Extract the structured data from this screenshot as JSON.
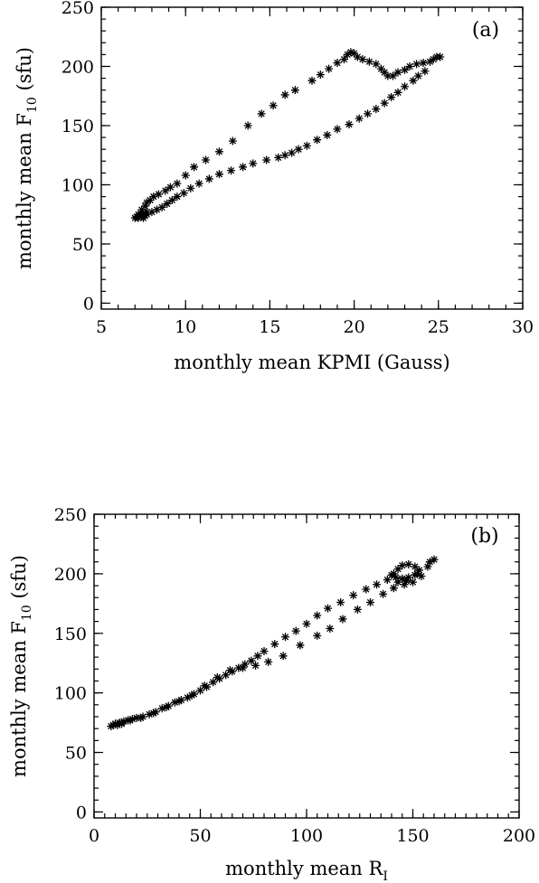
{
  "chart_data": [
    {
      "type": "scatter",
      "panel_label": "(a)",
      "xlabel": "monthly mean KPMI (Gauss)",
      "ylabel": {
        "main": "monthly mean F",
        "sub": "10",
        "unit": " (sfu)"
      },
      "xlim": [
        5,
        30
      ],
      "ylim": [
        -5,
        250
      ],
      "xticks": [
        5,
        10,
        15,
        20,
        25,
        30
      ],
      "yticks": [
        0,
        50,
        100,
        150,
        200,
        250
      ],
      "xtick_labels": [
        "5",
        "10",
        "15",
        "20",
        "25",
        "30"
      ],
      "ytick_labels": [
        "0",
        "50",
        "100",
        "150",
        "200",
        "250"
      ],
      "marker": "asterisk",
      "points": [
        [
          7.0,
          72
        ],
        [
          7.1,
          73
        ],
        [
          7.2,
          72
        ],
        [
          7.3,
          74
        ],
        [
          7.4,
          73
        ],
        [
          7.5,
          72
        ],
        [
          7.6,
          74
        ],
        [
          7.2,
          75
        ],
        [
          7.5,
          76
        ],
        [
          7.7,
          77
        ],
        [
          7.4,
          79
        ],
        [
          7.6,
          82
        ],
        [
          7.7,
          85
        ],
        [
          7.9,
          87
        ],
        [
          8.1,
          90
        ],
        [
          8.4,
          92
        ],
        [
          8.8,
          95
        ],
        [
          9.1,
          98
        ],
        [
          9.5,
          101
        ],
        [
          10.0,
          108
        ],
        [
          10.5,
          115
        ],
        [
          11.2,
          121
        ],
        [
          12.0,
          128
        ],
        [
          12.8,
          137
        ],
        [
          13.7,
          150
        ],
        [
          14.5,
          160
        ],
        [
          15.2,
          167
        ],
        [
          15.9,
          176
        ],
        [
          16.5,
          180
        ],
        [
          17.5,
          188
        ],
        [
          18.0,
          193
        ],
        [
          18.5,
          198
        ],
        [
          19.0,
          203
        ],
        [
          19.4,
          206
        ],
        [
          19.6,
          210
        ],
        [
          19.8,
          212
        ],
        [
          20.0,
          211
        ],
        [
          20.2,
          208
        ],
        [
          20.5,
          206
        ],
        [
          20.9,
          204
        ],
        [
          21.3,
          202
        ],
        [
          21.6,
          198
        ],
        [
          21.8,
          195
        ],
        [
          22.0,
          192
        ],
        [
          22.3,
          192
        ],
        [
          22.6,
          195
        ],
        [
          23.0,
          197
        ],
        [
          23.3,
          200
        ],
        [
          23.7,
          202
        ],
        [
          24.1,
          203
        ],
        [
          24.5,
          204
        ],
        [
          24.7,
          206
        ],
        [
          24.9,
          208
        ],
        [
          25.1,
          208
        ],
        [
          24.2,
          196
        ],
        [
          23.8,
          192
        ],
        [
          23.5,
          188
        ],
        [
          23.0,
          183
        ],
        [
          22.6,
          178
        ],
        [
          22.2,
          174
        ],
        [
          21.8,
          169
        ],
        [
          21.3,
          164
        ],
        [
          20.8,
          160
        ],
        [
          20.3,
          156
        ],
        [
          19.7,
          151
        ],
        [
          19.0,
          147
        ],
        [
          18.4,
          142
        ],
        [
          17.8,
          138
        ],
        [
          17.2,
          133
        ],
        [
          16.7,
          130
        ],
        [
          16.3,
          127
        ],
        [
          15.9,
          125
        ],
        [
          15.5,
          123
        ],
        [
          14.8,
          121
        ],
        [
          14.0,
          118
        ],
        [
          13.4,
          115
        ],
        [
          12.7,
          112
        ],
        [
          12.0,
          109
        ],
        [
          11.4,
          105
        ],
        [
          10.8,
          101
        ],
        [
          10.3,
          97
        ],
        [
          9.9,
          93
        ],
        [
          9.5,
          90
        ],
        [
          9.2,
          87
        ],
        [
          8.9,
          84
        ],
        [
          8.6,
          81
        ],
        [
          8.3,
          79
        ],
        [
          8.0,
          77
        ],
        [
          7.7,
          75
        ],
        [
          7.4,
          74
        ]
      ]
    },
    {
      "type": "scatter",
      "panel_label": "(b)",
      "xlabel": {
        "main": "monthly mean R",
        "sub": "I"
      },
      "ylabel": {
        "main": "monthly mean F",
        "sub": "10",
        "unit": " (sfu)"
      },
      "xlim": [
        0,
        200
      ],
      "ylim": [
        -5,
        250
      ],
      "xticks": [
        0,
        50,
        100,
        150,
        200
      ],
      "yticks": [
        0,
        50,
        100,
        150,
        200,
        250
      ],
      "xtick_labels": [
        "0",
        "50",
        "100",
        "150",
        "200"
      ],
      "ytick_labels": [
        "0",
        "50",
        "100",
        "150",
        "200",
        "250"
      ],
      "marker": "asterisk",
      "points": [
        [
          8,
          72
        ],
        [
          9,
          73
        ],
        [
          10,
          74
        ],
        [
          11,
          73
        ],
        [
          12,
          75
        ],
        [
          13,
          74
        ],
        [
          14,
          76
        ],
        [
          16,
          77
        ],
        [
          18,
          78
        ],
        [
          20,
          79
        ],
        [
          23,
          80
        ],
        [
          26,
          82
        ],
        [
          29,
          84
        ],
        [
          32,
          87
        ],
        [
          35,
          89
        ],
        [
          38,
          92
        ],
        [
          41,
          94
        ],
        [
          44,
          96
        ],
        [
          47,
          99
        ],
        [
          50,
          102
        ],
        [
          53,
          105
        ],
        [
          56,
          109
        ],
        [
          59,
          112
        ],
        [
          62,
          115
        ],
        [
          65,
          118
        ],
        [
          68,
          121
        ],
        [
          71,
          124
        ],
        [
          74,
          127
        ],
        [
          77,
          131
        ],
        [
          80,
          135
        ],
        [
          85,
          141
        ],
        [
          90,
          147
        ],
        [
          95,
          152
        ],
        [
          100,
          158
        ],
        [
          105,
          165
        ],
        [
          110,
          171
        ],
        [
          116,
          176
        ],
        [
          122,
          182
        ],
        [
          128,
          187
        ],
        [
          133,
          191
        ],
        [
          138,
          195
        ],
        [
          141,
          200
        ],
        [
          143,
          204
        ],
        [
          145,
          207
        ],
        [
          148,
          208
        ],
        [
          151,
          206
        ],
        [
          153,
          203
        ],
        [
          151,
          199
        ],
        [
          148,
          197
        ],
        [
          145,
          196
        ],
        [
          142,
          197
        ],
        [
          140,
          199
        ],
        [
          143,
          193
        ],
        [
          146,
          191
        ],
        [
          150,
          193
        ],
        [
          154,
          198
        ],
        [
          157,
          206
        ],
        [
          160,
          212
        ],
        [
          158,
          210
        ],
        [
          152,
          200
        ],
        [
          147,
          194
        ],
        [
          141,
          188
        ],
        [
          136,
          183
        ],
        [
          130,
          176
        ],
        [
          124,
          170
        ],
        [
          117,
          162
        ],
        [
          111,
          154
        ],
        [
          105,
          148
        ],
        [
          97,
          140
        ],
        [
          89,
          131
        ],
        [
          82,
          126
        ],
        [
          76,
          123
        ],
        [
          70,
          121
        ],
        [
          64,
          119
        ],
        [
          58,
          113
        ],
        [
          52,
          106
        ],
        [
          46,
          98
        ],
        [
          40,
          93
        ],
        [
          34,
          88
        ],
        [
          28,
          83
        ],
        [
          22,
          79
        ],
        [
          17,
          77
        ],
        [
          13,
          75
        ],
        [
          10,
          74
        ]
      ]
    }
  ]
}
